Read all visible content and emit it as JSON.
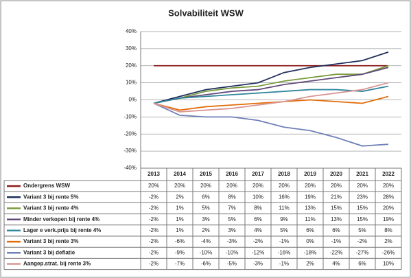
{
  "chart_data": {
    "type": "line",
    "title": "Solvabiliteit WSW",
    "categories": [
      "2013",
      "2014",
      "2015",
      "2016",
      "2017",
      "2018",
      "2019",
      "2020",
      "2021",
      "2022"
    ],
    "ylim": [
      -40,
      40
    ],
    "yticks": [
      {
        "value": -40,
        "label": "-40%"
      },
      {
        "value": -30,
        "label": "-30%"
      },
      {
        "value": -20,
        "label": "-20%"
      },
      {
        "value": -10,
        "label": "-10%"
      },
      {
        "value": 0,
        "label": "0%"
      },
      {
        "value": 10,
        "label": "10%"
      },
      {
        "value": 20,
        "label": "20%"
      },
      {
        "value": 30,
        "label": "30%"
      },
      {
        "value": 40,
        "label": "40%"
      }
    ],
    "grid": true,
    "series": [
      {
        "name": "Ondergrens WSW",
        "color": "#8b1a1a",
        "values": [
          20,
          20,
          20,
          20,
          20,
          20,
          20,
          20,
          20,
          20
        ],
        "value_labels": [
          "20%",
          "20%",
          "20%",
          "20%",
          "20%",
          "20%",
          "20%",
          "20%",
          "20%",
          "20%"
        ]
      },
      {
        "name": "Variant 3 bij rente 5%",
        "color": "#1f2f5c",
        "values": [
          -2,
          2,
          6,
          8,
          10,
          16,
          19,
          21,
          23,
          28
        ],
        "value_labels": [
          "-2%",
          "2%",
          "6%",
          "8%",
          "10%",
          "16%",
          "19%",
          "21%",
          "23%",
          "28%"
        ]
      },
      {
        "name": "Variant 3 bij rente 4%",
        "color": "#7a9a3c",
        "values": [
          -2,
          1,
          5,
          7,
          8,
          11,
          13,
          15,
          15,
          20
        ],
        "value_labels": [
          "-2%",
          "1%",
          "5%",
          "7%",
          "8%",
          "11%",
          "13%",
          "15%",
          "15%",
          "20%"
        ]
      },
      {
        "name": "Minder verkopen bij rente 4%",
        "color": "#5f497a",
        "values": [
          -2,
          1,
          3,
          5,
          6,
          9,
          11,
          13,
          15,
          19
        ],
        "value_labels": [
          "-2%",
          "1%",
          "3%",
          "5%",
          "6%",
          "9%",
          "11%",
          "13%",
          "15%",
          "19%"
        ]
      },
      {
        "name": "Lager e verk.prijs bij rente 4%",
        "color": "#31859c",
        "values": [
          -2,
          1,
          2,
          3,
          4,
          5,
          6,
          6,
          5,
          8
        ],
        "value_labels": [
          "-2%",
          "1%",
          "2%",
          "3%",
          "4%",
          "5%",
          "6%",
          "6%",
          "5%",
          "8%"
        ]
      },
      {
        "name": "Variant 3 bij rente 3%",
        "color": "#e36c09",
        "values": [
          -2,
          -6,
          -4,
          -3,
          -2,
          -1,
          0,
          -1,
          -2,
          2
        ],
        "value_labels": [
          "-2%",
          "-6%",
          "-4%",
          "-3%",
          "-2%",
          "-1%",
          "0%",
          "-1%",
          "-2%",
          "2%"
        ]
      },
      {
        "name": "Variant 3 bij deflatie",
        "color": "#6f7fb8",
        "values": [
          -2,
          -9,
          -10,
          -10,
          -12,
          -16,
          -18,
          -22,
          -27,
          -26
        ],
        "value_labels": [
          "-2%",
          "-9%",
          "-10%",
          "-10%",
          "-12%",
          "-16%",
          "-18%",
          "-22%",
          "-27%",
          "-26%"
        ]
      },
      {
        "name": "Aangep.strat. bij rente 3%",
        "color": "#d99694",
        "values": [
          -2,
          -7,
          -6,
          -5,
          -3,
          -1,
          2,
          4,
          6,
          10
        ],
        "value_labels": [
          "-2%",
          "-7%",
          "-6%",
          "-5%",
          "-3%",
          "-1%",
          "2%",
          "4%",
          "6%",
          "10%"
        ]
      }
    ]
  }
}
